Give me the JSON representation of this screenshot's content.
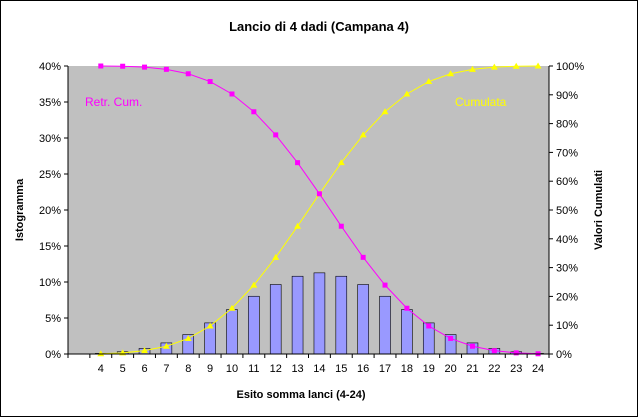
{
  "chart_data": {
    "type": "bar",
    "title": "Lancio di 4 dadi (Campana 4)",
    "xlabel": "Esito somma  lanci (4-24)",
    "ylabel": "Istogramma",
    "y2label": "Valori Cumulati",
    "categories": [
      4,
      5,
      6,
      7,
      8,
      9,
      10,
      11,
      12,
      13,
      14,
      15,
      16,
      17,
      18,
      19,
      20,
      21,
      22,
      23,
      24
    ],
    "ylim": [
      0,
      0.4
    ],
    "y2lim": [
      0,
      1
    ],
    "yticks": [
      "0%",
      "5%",
      "10%",
      "15%",
      "20%",
      "25%",
      "30%",
      "35%",
      "40%"
    ],
    "y2ticks": [
      "0%",
      "10%",
      "20%",
      "30%",
      "40%",
      "50%",
      "60%",
      "70%",
      "80%",
      "90%",
      "100%"
    ],
    "grid": false,
    "plot_background": "#C0C0C0",
    "series": [
      {
        "name": "Istogramma",
        "kind": "bar",
        "axis": "left",
        "color": "#9999FF",
        "values": [
          0.0008,
          0.0031,
          0.0077,
          0.0154,
          0.027,
          0.0432,
          0.0617,
          0.0802,
          0.0965,
          0.108,
          0.1127,
          0.108,
          0.0965,
          0.0802,
          0.0617,
          0.0432,
          0.027,
          0.0154,
          0.0077,
          0.0031,
          0.0008
        ]
      },
      {
        "name": "Cumulata",
        "kind": "line",
        "axis": "right",
        "color": "#FFFF00",
        "marker": "triangle",
        "values": [
          0.0008,
          0.0039,
          0.0116,
          0.027,
          0.054,
          0.0972,
          0.1589,
          0.2392,
          0.3356,
          0.4437,
          0.5563,
          0.6644,
          0.7608,
          0.8411,
          0.9028,
          0.946,
          0.973,
          0.9884,
          0.9961,
          0.9992,
          1.0
        ]
      },
      {
        "name": "Retr. Cum.",
        "kind": "line",
        "axis": "right",
        "color": "#FF00FF",
        "marker": "square",
        "values": [
          1.0,
          0.9992,
          0.9961,
          0.9884,
          0.973,
          0.946,
          0.9028,
          0.8411,
          0.7608,
          0.6644,
          0.5563,
          0.4437,
          0.3356,
          0.2392,
          0.1589,
          0.0972,
          0.054,
          0.027,
          0.0116,
          0.0039,
          0.0008
        ]
      }
    ]
  }
}
